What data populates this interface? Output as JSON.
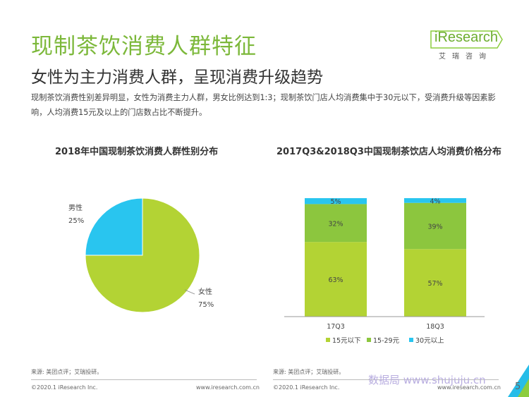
{
  "header": {
    "title": "现制茶饮消费人群特征",
    "subtitle": "女性为主力消费人群，呈现消费升级趋势",
    "description": "现制茶饮消费性别差异明显，女性为消费主力人群，男女比例达到1:3；现制茶饮门店人均消费集中于30元以下，受消费升级等因素影响，人均消费15元及以上的门店数占比不断提升。"
  },
  "logo": {
    "word": "iResearch",
    "sub": "艾瑞咨询"
  },
  "colors": {
    "green": "#b3d334",
    "mid_green": "#8cc63e",
    "cyan": "#29c5ef",
    "title_green": "#7cb83a"
  },
  "chart_data": [
    {
      "type": "pie",
      "title": "2018年中国现制茶饮消费人群性别分布",
      "slices": [
        {
          "label": "男性",
          "value": 25,
          "value_label": "25%",
          "color": "#29c5ef"
        },
        {
          "label": "女性",
          "value": 75,
          "value_label": "75%",
          "color": "#b3d334"
        }
      ]
    },
    {
      "type": "bar",
      "stacked": true,
      "title": "2017Q3&2018Q3中国现制茶饮店人均消费价格分布",
      "categories": [
        "17Q3",
        "18Q3"
      ],
      "series": [
        {
          "name": "15元以下",
          "values": [
            63,
            57
          ],
          "labels": [
            "63%",
            "57%"
          ],
          "color": "#b3d334"
        },
        {
          "name": "15-29元",
          "values": [
            32,
            39
          ],
          "labels": [
            "32%",
            "39%"
          ],
          "color": "#8cc63e"
        },
        {
          "name": "30元以上",
          "values": [
            5,
            4
          ],
          "labels": [
            "5%",
            "4%"
          ],
          "color": "#29c5ef"
        }
      ],
      "ylim": [
        0,
        100
      ]
    }
  ],
  "footer": {
    "source_left": "来源: 美团点评；艾瑞投研。",
    "source_right": "来源: 美团点评；艾瑞投研。",
    "copyright": "©2020.1 iResearch Inc.",
    "website": "www.iresearch.com.cn",
    "watermark": "数据局 www.shujuju.cn",
    "page": "5"
  }
}
